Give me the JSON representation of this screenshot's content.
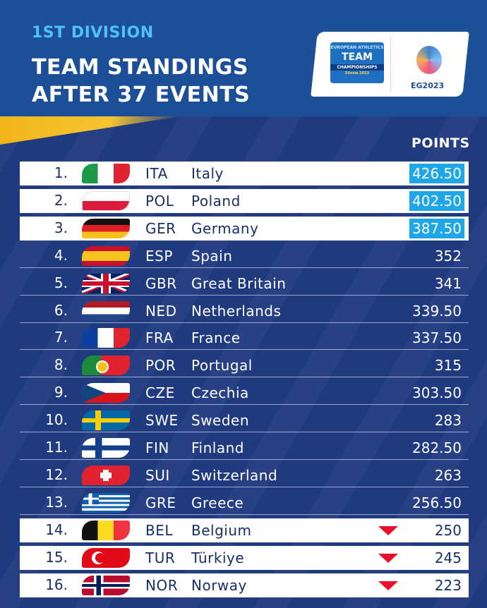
{
  "header": {
    "division": "1ST DIVISION",
    "title_line1": "TEAM STANDINGS",
    "title_line2": "AFTER 37 EVENTS"
  },
  "logos": {
    "team_top": "EUROPEAN ATHLETICS",
    "team_main": "TEAM",
    "team_sub": "CHAMPIONSHIPS",
    "team_place": "Silesia 2023",
    "host": "EG2023"
  },
  "table": {
    "points_header": "POINTS",
    "rows": [
      {
        "rank": "1.",
        "code": "ITA",
        "country": "Italy",
        "points": "426.50",
        "flag": "italy-flag-icon"
      },
      {
        "rank": "2.",
        "code": "POL",
        "country": "Poland",
        "points": "402.50",
        "flag": "poland-flag-icon"
      },
      {
        "rank": "3.",
        "code": "GER",
        "country": "Germany",
        "points": "387.50",
        "flag": "germany-flag-icon"
      },
      {
        "rank": "4.",
        "code": "ESP",
        "country": "Spain",
        "points": "352",
        "flag": "spain-flag-icon"
      },
      {
        "rank": "5.",
        "code": "GBR",
        "country": "Great Britain",
        "points": "341",
        "flag": "great-britain-flag-icon"
      },
      {
        "rank": "6.",
        "code": "NED",
        "country": "Netherlands",
        "points": "339.50",
        "flag": "netherlands-flag-icon"
      },
      {
        "rank": "7.",
        "code": "FRA",
        "country": "France",
        "points": "337.50",
        "flag": "france-flag-icon"
      },
      {
        "rank": "8.",
        "code": "POR",
        "country": "Portugal",
        "points": "315",
        "flag": "portugal-flag-icon"
      },
      {
        "rank": "9.",
        "code": "CZE",
        "country": "Czechia",
        "points": "303.50",
        "flag": "czechia-flag-icon"
      },
      {
        "rank": "10.",
        "code": "SWE",
        "country": "Sweden",
        "points": "283",
        "flag": "sweden-flag-icon"
      },
      {
        "rank": "11.",
        "code": "FIN",
        "country": "Finland",
        "points": "282.50",
        "flag": "finland-flag-icon"
      },
      {
        "rank": "12.",
        "code": "SUI",
        "country": "Switzerland",
        "points": "263",
        "flag": "switzerland-flag-icon"
      },
      {
        "rank": "13.",
        "code": "GRE",
        "country": "Greece",
        "points": "256.50",
        "flag": "greece-flag-icon"
      },
      {
        "rank": "14.",
        "code": "BEL",
        "country": "Belgium",
        "points": "250",
        "flag": "belgium-flag-icon"
      },
      {
        "rank": "15.",
        "code": "TUR",
        "country": "Türkiye",
        "points": "245",
        "flag": "turkey-flag-icon"
      },
      {
        "rank": "16.",
        "code": "NOR",
        "country": "Norway",
        "points": "223",
        "flag": "norway-flag-icon"
      }
    ]
  },
  "colors": {
    "background": "#1f3a80",
    "accent_cyan": "#1ea6e8",
    "relegation_red": "#e8102a",
    "division_text": "#4fc3f0"
  }
}
